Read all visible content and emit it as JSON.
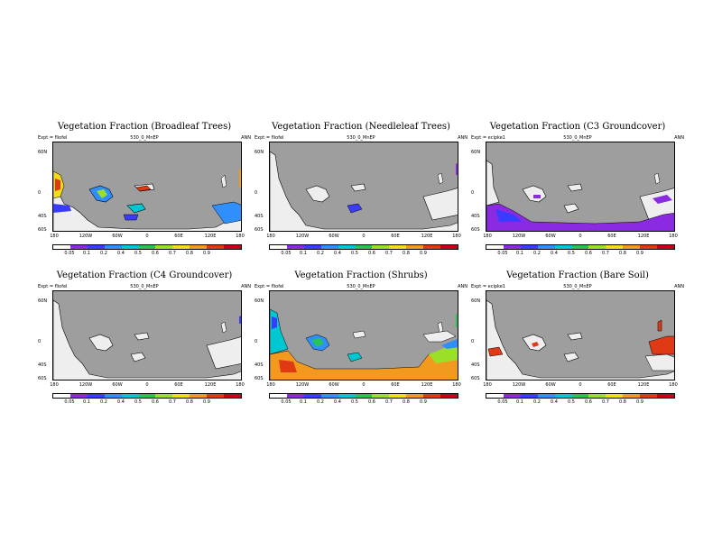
{
  "colorbar": {
    "colors": [
      "#ffffff",
      "#8a2be2",
      "#3b3bff",
      "#2f8fff",
      "#00c8d2",
      "#29c25a",
      "#9be028",
      "#f2dc1e",
      "#f29a1e",
      "#e03a14",
      "#c8001e"
    ],
    "labels": [
      "0.05",
      "0.1",
      "0.2",
      "0.4",
      "0.5",
      "0.6",
      "0.7",
      "0.8",
      "0.9"
    ]
  },
  "axes": {
    "y_labels": [
      "60N",
      "0",
      "40S",
      "60S"
    ],
    "x_labels": [
      "180",
      "120W",
      "60W",
      "0",
      "60E",
      "120E",
      "180"
    ]
  },
  "panels": [
    {
      "title": "Vegetation Fraction (Broadleaf Trees)",
      "left": "Expt = fliofel",
      "mid": "530_0_MnEP",
      "right": "ANN"
    },
    {
      "title": "Vegetation Fraction (Needleleaf Trees)",
      "left": "Expt = fliofel",
      "mid": "530_0_MnEP",
      "right": "ANN"
    },
    {
      "title": "Vegetation Fraction (C3 Groundcover)",
      "left": "Expt = ecipke1",
      "mid": "530_0_MnEP",
      "right": "ANN"
    },
    {
      "title": "Vegetation Fraction (C4 Groundcover)",
      "left": "Expt = fliofel",
      "mid": "530_0_MnEP",
      "right": "ANN"
    },
    {
      "title": "Vegetation Fraction (Shrubs)",
      "left": "Expt = fliofel",
      "mid": "530_0_MnEP",
      "right": "ANN"
    },
    {
      "title": "Vegetation Fraction (Bare Soil)",
      "left": "Expt = ecipke1",
      "mid": "530_0_MnEP",
      "right": "ANN"
    }
  ]
}
